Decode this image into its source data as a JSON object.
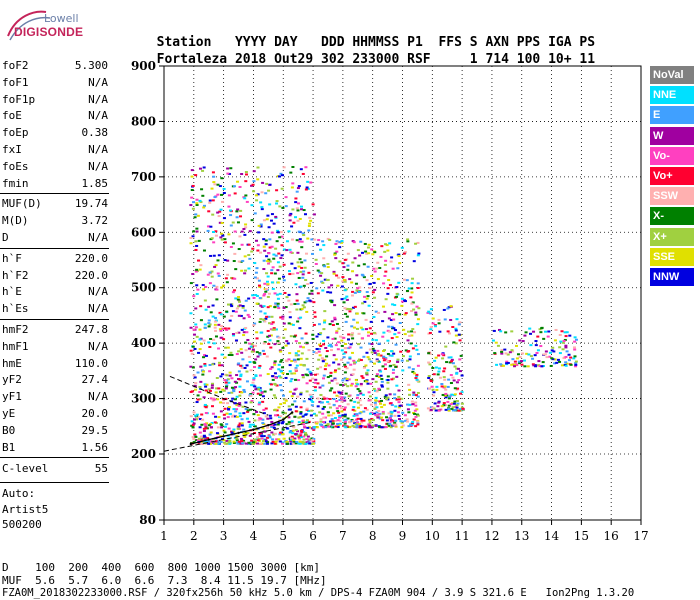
{
  "logo": {
    "line1": "Lowell",
    "line2": "DIGISONDE"
  },
  "header": {
    "columns": [
      "Station",
      "YYYY",
      "DAY",
      "DDD",
      "HHMMSS",
      "P1",
      "FFS",
      "S",
      "AXN",
      "PPS",
      "IGA",
      "PS"
    ],
    "values": [
      "Fortaleza",
      "2018",
      "Out29",
      "302",
      "233000",
      "RSF",
      "",
      "1",
      "714",
      "100",
      "10+",
      "11"
    ]
  },
  "params": {
    "group1": [
      {
        "label": "foF2",
        "value": "5.300"
      },
      {
        "label": "foF1",
        "value": "N/A"
      },
      {
        "label": "foF1p",
        "value": "N/A"
      },
      {
        "label": "foE",
        "value": "N/A"
      },
      {
        "label": "foEp",
        "value": "0.38"
      },
      {
        "label": "fxI",
        "value": "N/A"
      },
      {
        "label": "foEs",
        "value": "N/A"
      },
      {
        "label": "fmin",
        "value": "1.85"
      }
    ],
    "group2": [
      {
        "label": "MUF(D)",
        "value": "19.74"
      },
      {
        "label": "M(D)",
        "value": "3.72"
      },
      {
        "label": "D",
        "value": "N/A"
      }
    ],
    "group3": [
      {
        "label": "h`F",
        "value": "220.0"
      },
      {
        "label": "h`F2",
        "value": "220.0"
      },
      {
        "label": "h`E",
        "value": "N/A"
      },
      {
        "label": "h`Es",
        "value": "N/A"
      }
    ],
    "group4": [
      {
        "label": "hmF2",
        "value": "247.8"
      },
      {
        "label": "hmF1",
        "value": "N/A"
      },
      {
        "label": "hmE",
        "value": "110.0"
      },
      {
        "label": "yF2",
        "value": "27.4"
      },
      {
        "label": "yF1",
        "value": "N/A"
      },
      {
        "label": "yE",
        "value": "20.0"
      },
      {
        "label": "B0",
        "value": "29.5"
      },
      {
        "label": "B1",
        "value": "1.56"
      }
    ],
    "clevel": {
      "label": "C-level",
      "value": "55"
    },
    "auto": [
      "Auto:",
      "Artist5",
      "500200"
    ]
  },
  "legend": [
    {
      "label": "NoVal",
      "bg": "#808080",
      "fg": "#ffffff"
    },
    {
      "label": "NNE",
      "bg": "#00e0ff",
      "fg": "#ffffff"
    },
    {
      "label": "E",
      "bg": "#40a0ff",
      "fg": "#ffffff"
    },
    {
      "label": "W",
      "bg": "#a000a0",
      "fg": "#ffffff"
    },
    {
      "label": "Vo-",
      "bg": "#ff40c0",
      "fg": "#ffffff"
    },
    {
      "label": "Vo+",
      "bg": "#ff0030",
      "fg": "#ffffff"
    },
    {
      "label": "SSW",
      "bg": "#ffb0b0",
      "fg": "#ffffff"
    },
    {
      "label": "X-",
      "bg": "#008000",
      "fg": "#ffffff"
    },
    {
      "label": "X+",
      "bg": "#a0d040",
      "fg": "#ffffff"
    },
    {
      "label": "SSE",
      "bg": "#e0e000",
      "fg": "#ffffff"
    },
    {
      "label": "NNW",
      "bg": "#0000e0",
      "fg": "#ffffff"
    }
  ],
  "footer": {
    "d_label": "D",
    "d_values": [
      "100",
      "200",
      "400",
      "600",
      "800",
      "1000",
      "1500",
      "3000"
    ],
    "d_unit": "[km]",
    "muf_label": "MUF",
    "muf_values": [
      "5.6",
      "5.7",
      "6.0",
      "6.6",
      "7.3",
      "8.4",
      "11.5",
      "19.7"
    ],
    "muf_unit": "[MHz]",
    "line": "FZA0M_2018302233000.RSF / 320fx256h 50 kHz 5.0 km / DPS-4 FZA0M 904 / 3.9 S 321.6 E   Ion2Png 1.3.20"
  },
  "chart_data": {
    "type": "scatter",
    "title": "",
    "xlabel": "",
    "ylabel": "",
    "xlim": [
      1,
      17
    ],
    "ylim": [
      80,
      900
    ],
    "xticks": [
      1,
      2,
      3,
      4,
      5,
      6,
      7,
      8,
      9,
      10,
      11,
      12,
      13,
      14,
      15,
      16,
      17
    ],
    "yticks": [
      80,
      200,
      300,
      400,
      500,
      600,
      700,
      800,
      900
    ],
    "ytick_labels": [
      "80",
      "200",
      "300",
      "400",
      "500",
      "600",
      "700",
      "800",
      "900"
    ],
    "grid": true,
    "legend_position": "right",
    "echo_regions": [
      {
        "series": "F-layer broadband echoes",
        "x_range": [
          1.85,
          6.0
        ],
        "h_range": [
          220,
          720
        ]
      },
      {
        "series": "F-layer echoes",
        "x_range": [
          6.0,
          9.5
        ],
        "h_range": [
          250,
          590
        ]
      },
      {
        "series": "F-layer echoes",
        "x_range": [
          9.8,
          11.0
        ],
        "h_range": [
          280,
          470
        ]
      },
      {
        "series": "oblique echoes",
        "x_range": [
          12.0,
          14.8
        ],
        "h_range": [
          360,
          430
        ]
      }
    ],
    "traced_trace": [
      {
        "x": 1.9,
        "y": 218
      },
      {
        "x": 2.5,
        "y": 226
      },
      {
        "x": 3.0,
        "y": 232
      },
      {
        "x": 3.5,
        "y": 238
      },
      {
        "x": 4.0,
        "y": 244
      },
      {
        "x": 4.5,
        "y": 252
      },
      {
        "x": 5.0,
        "y": 262
      },
      {
        "x": 5.3,
        "y": 275
      }
    ],
    "profile_dashed": [
      {
        "x": 1.0,
        "y": 205
      },
      {
        "x": 6.0,
        "y": 258
      }
    ],
    "profile_dashed_upper": [
      {
        "x": 1.2,
        "y": 340
      },
      {
        "x": 3.0,
        "y": 300
      },
      {
        "x": 4.5,
        "y": 270
      }
    ]
  }
}
